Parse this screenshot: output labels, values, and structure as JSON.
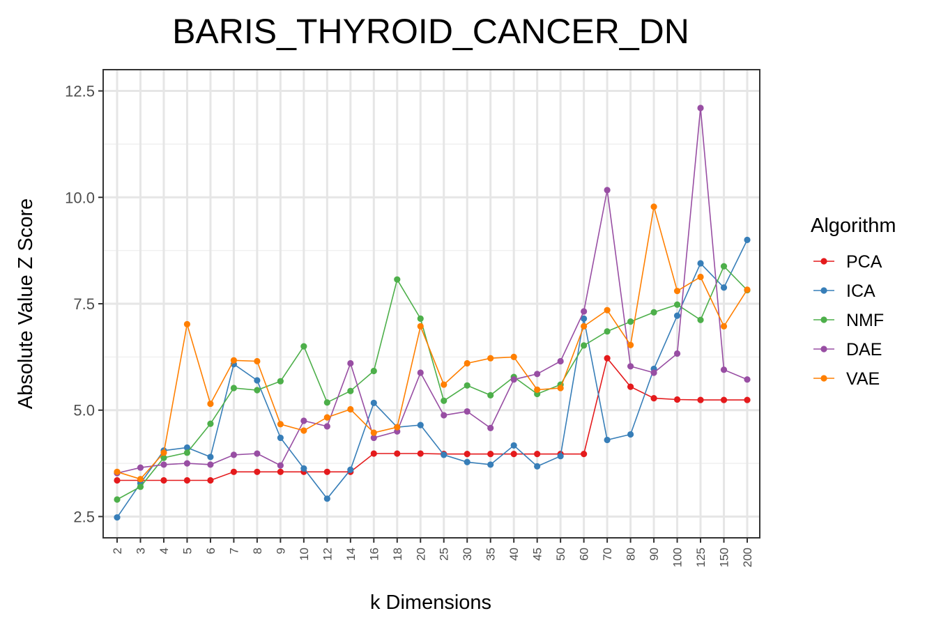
{
  "chart_data": {
    "type": "line",
    "title": "BARIS_THYROID_CANCER_DN",
    "xlabel": "k Dimensions",
    "ylabel": "Absolute Value Z Score",
    "categories": [
      "2",
      "3",
      "4",
      "5",
      "6",
      "7",
      "8",
      "9",
      "10",
      "12",
      "14",
      "16",
      "18",
      "20",
      "25",
      "30",
      "35",
      "40",
      "45",
      "50",
      "60",
      "70",
      "80",
      "90",
      "100",
      "125",
      "150",
      "200"
    ],
    "yticks": [
      "2.5",
      "5.0",
      "7.5",
      "10.0",
      "12.5"
    ],
    "ylim": [
      2.0,
      13.0
    ],
    "grid": true,
    "legend": {
      "title": "Algorithm",
      "position": "right"
    },
    "series": [
      {
        "name": "PCA",
        "color": "#e41a1c",
        "values": [
          3.35,
          3.35,
          3.35,
          3.35,
          3.35,
          3.55,
          3.55,
          3.55,
          3.55,
          3.55,
          3.55,
          3.98,
          3.98,
          3.98,
          3.97,
          3.97,
          3.97,
          3.97,
          3.97,
          3.97,
          3.97,
          6.22,
          5.55,
          5.28,
          5.25,
          5.24,
          5.24,
          5.24
        ]
      },
      {
        "name": "ICA",
        "color": "#377eb8",
        "values": [
          2.48,
          3.28,
          4.05,
          4.12,
          3.9,
          6.08,
          5.7,
          4.35,
          3.63,
          2.92,
          3.6,
          5.17,
          4.6,
          4.65,
          3.95,
          3.78,
          3.72,
          4.17,
          3.68,
          3.92,
          7.15,
          4.3,
          4.43,
          5.97,
          7.22,
          8.45,
          7.88,
          9.0
        ]
      },
      {
        "name": "NMF",
        "color": "#4daf4a",
        "values": [
          2.9,
          3.2,
          3.88,
          4.0,
          4.68,
          5.52,
          5.47,
          5.68,
          6.5,
          5.18,
          5.45,
          5.92,
          8.07,
          7.15,
          5.22,
          5.58,
          5.35,
          5.78,
          5.38,
          5.6,
          6.52,
          6.85,
          7.08,
          7.3,
          7.48,
          7.12,
          8.38,
          7.82
        ]
      },
      {
        "name": "DAE",
        "color": "#984ea3",
        "values": [
          3.52,
          3.65,
          3.72,
          3.75,
          3.72,
          3.95,
          3.98,
          3.7,
          4.75,
          4.62,
          6.1,
          4.35,
          4.5,
          5.88,
          4.88,
          4.97,
          4.58,
          5.72,
          5.85,
          6.15,
          7.32,
          10.17,
          6.03,
          5.88,
          6.33,
          12.1,
          5.95,
          5.72
        ]
      },
      {
        "name": "VAE",
        "color": "#ff7f00",
        "values": [
          3.55,
          3.38,
          4.0,
          7.02,
          5.15,
          6.17,
          6.15,
          4.67,
          4.52,
          4.83,
          5.02,
          4.47,
          4.6,
          6.97,
          5.6,
          6.1,
          6.22,
          6.25,
          5.48,
          5.52,
          6.97,
          7.35,
          6.53,
          9.78,
          7.8,
          8.13,
          6.97,
          7.83
        ]
      }
    ]
  }
}
